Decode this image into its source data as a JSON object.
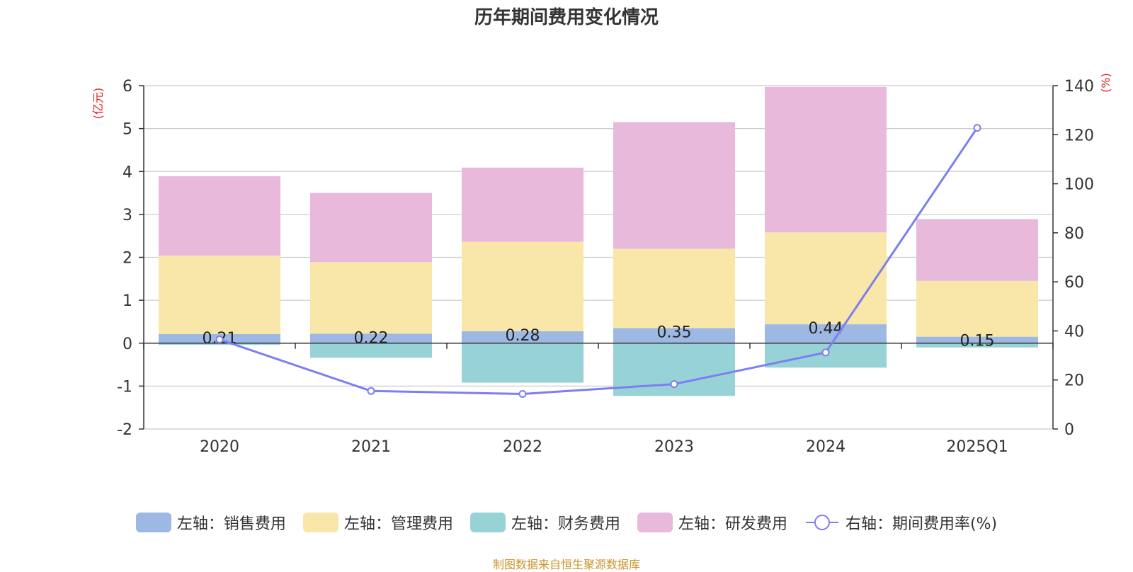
{
  "chart_data": {
    "type": "bar",
    "stacked": true,
    "title": "历年期间费用变化情况",
    "categories": [
      "2020",
      "2021",
      "2022",
      "2023",
      "2024",
      "2025Q1"
    ],
    "left_axis": {
      "unit": "(亿元)",
      "ylim": [
        -2,
        6
      ],
      "ticks": [
        "-2",
        "-1",
        "0",
        "1",
        "2",
        "3",
        "4",
        "5",
        "6"
      ]
    },
    "right_axis": {
      "unit": "(%)",
      "ylim": [
        0,
        140
      ],
      "ticks": [
        "0",
        "20",
        "40",
        "60",
        "80",
        "100",
        "120",
        "140"
      ]
    },
    "series": [
      {
        "name": "左轴：销售费用",
        "axis": "left",
        "kind": "bar",
        "color": "#9db8e2",
        "values": [
          0.21,
          0.22,
          0.28,
          0.35,
          0.44,
          0.15
        ],
        "labels": [
          "0.21",
          "0.22",
          "0.28",
          "0.35",
          "0.44",
          "0.15"
        ]
      },
      {
        "name": "左轴：管理费用",
        "axis": "left",
        "kind": "bar",
        "color": "#f8e7a8",
        "values": [
          1.83,
          1.67,
          2.08,
          1.85,
          2.14,
          1.3
        ]
      },
      {
        "name": "左轴：财务费用",
        "axis": "left",
        "kind": "bar",
        "color": "#97d3d6",
        "values": [
          -0.04,
          -0.34,
          -0.92,
          -1.23,
          -0.57,
          -0.1
        ]
      },
      {
        "name": "左轴：研发费用",
        "axis": "left",
        "kind": "bar",
        "color": "#e8b9da",
        "values": [
          1.85,
          1.61,
          1.73,
          2.95,
          3.39,
          1.44
        ]
      },
      {
        "name": "右轴：期间费用率(%)",
        "axis": "right",
        "kind": "line",
        "color": "#7b7ff0",
        "values": [
          36.5,
          15.5,
          14.3,
          18.3,
          31.2,
          122.8
        ]
      }
    ]
  },
  "source_note": "制图数据来自恒生聚源数据库"
}
